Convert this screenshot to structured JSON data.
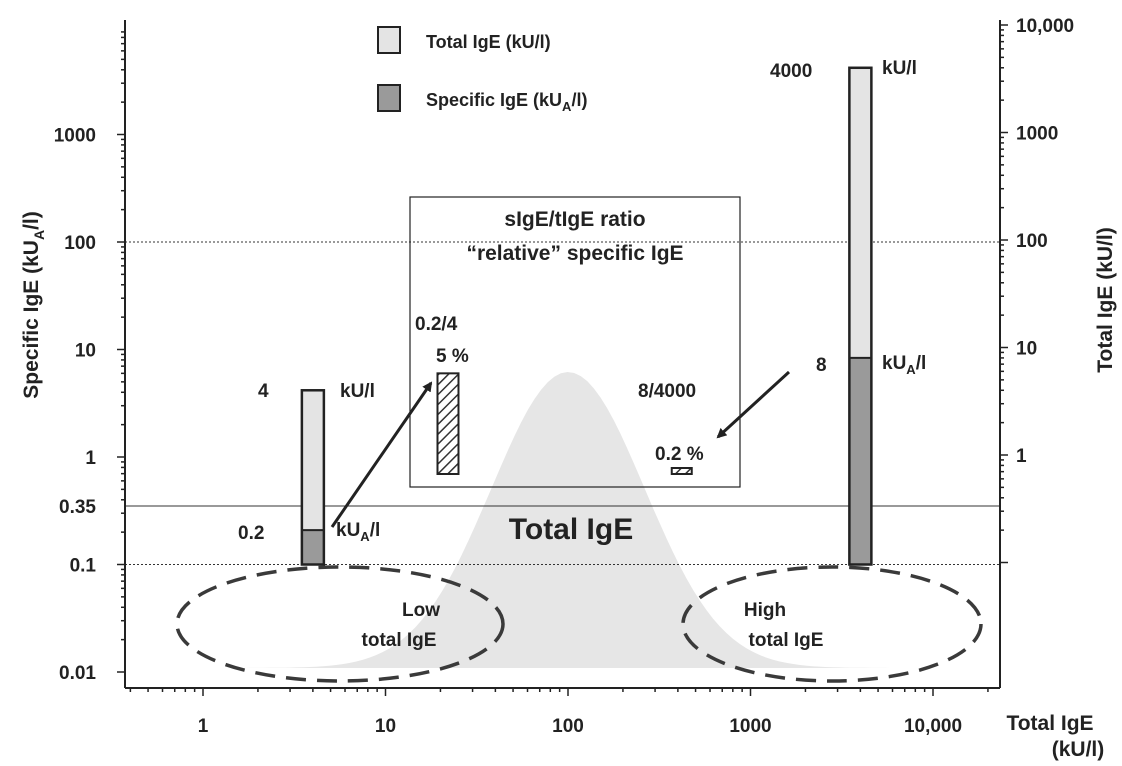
{
  "chart_data": {
    "type": "bar",
    "x_scale": "log",
    "y_scale": "log",
    "x_axis": {
      "title_line1": "Total IgE",
      "title_line2": "(kU/l)",
      "range": [
        0.4,
        25000
      ],
      "ticks": [
        {
          "value": 1,
          "label": "1"
        },
        {
          "value": 10,
          "label": "10"
        },
        {
          "value": 100,
          "label": "100"
        },
        {
          "value": 1000,
          "label": "1000"
        },
        {
          "value": 10000,
          "label": "10,000"
        }
      ]
    },
    "y_left": {
      "title": "Specific IgE (kU",
      "title_sub": "A",
      "title_end": "/l)",
      "range": [
        0.0085,
        15000
      ],
      "ticks": [
        {
          "value": 0.01,
          "label": "0.01"
        },
        {
          "value": 0.1,
          "label": "0.1"
        },
        {
          "value": 0.35,
          "label": "0.35"
        },
        {
          "value": 1,
          "label": "1"
        },
        {
          "value": 10,
          "label": "10"
        },
        {
          "value": 100,
          "label": "100"
        },
        {
          "value": 1000,
          "label": "1000"
        }
      ]
    },
    "y_right": {
      "title": "Total IgE (kU/l)",
      "ticks": [
        {
          "value": 1,
          "label": "1"
        },
        {
          "value": 10,
          "label": "10"
        },
        {
          "value": 100,
          "label": "100"
        },
        {
          "value": 1000,
          "label": "1000"
        },
        {
          "value": 10000,
          "label": "10,000"
        }
      ]
    },
    "reference_lines": [
      {
        "y": 100,
        "style": "dotted"
      },
      {
        "y": 0.35,
        "style": "solid"
      },
      {
        "y": 0.1,
        "style": "dotted"
      }
    ],
    "legend": [
      {
        "label": "Total IgE (kU/l)",
        "color": "#e4e4e4"
      },
      {
        "label": "Specific IgE (kU",
        "sub": "A",
        "end": "/l)",
        "color": "#9a9a9a"
      }
    ],
    "bars": [
      {
        "x": 4,
        "total": 4,
        "specific": 0.2,
        "total_value_label": "4",
        "total_unit_label": "kU/l",
        "specific_value_label": "0.2",
        "specific_unit_label": "kU",
        "specific_unit_sub": "A",
        "specific_unit_end": "/l"
      },
      {
        "x": 4000,
        "total": 4000,
        "specific": 8,
        "total_value_label": "4000",
        "total_unit_label": "kU/l",
        "specific_value_label": "8",
        "specific_unit_label": "kU",
        "specific_unit_sub": "A",
        "specific_unit_end": "/l"
      }
    ],
    "ratio_box": {
      "title_line1": "sIgE/tIgE ratio",
      "title_line2": "“relative” specific IgE",
      "items": [
        {
          "x": 22,
          "percent": 5,
          "fraction_label": "0.2/4",
          "percent_label": "5 %"
        },
        {
          "x": 420,
          "percent": 0.2,
          "fraction_label": "8/4000",
          "percent_label": "0.2 %"
        }
      ]
    },
    "distribution_label": "Total IgE",
    "ellipses": [
      {
        "label_line1": "Low",
        "label_line2": "total IgE"
      },
      {
        "label_line1": "High",
        "label_line2": "total IgE"
      }
    ]
  }
}
